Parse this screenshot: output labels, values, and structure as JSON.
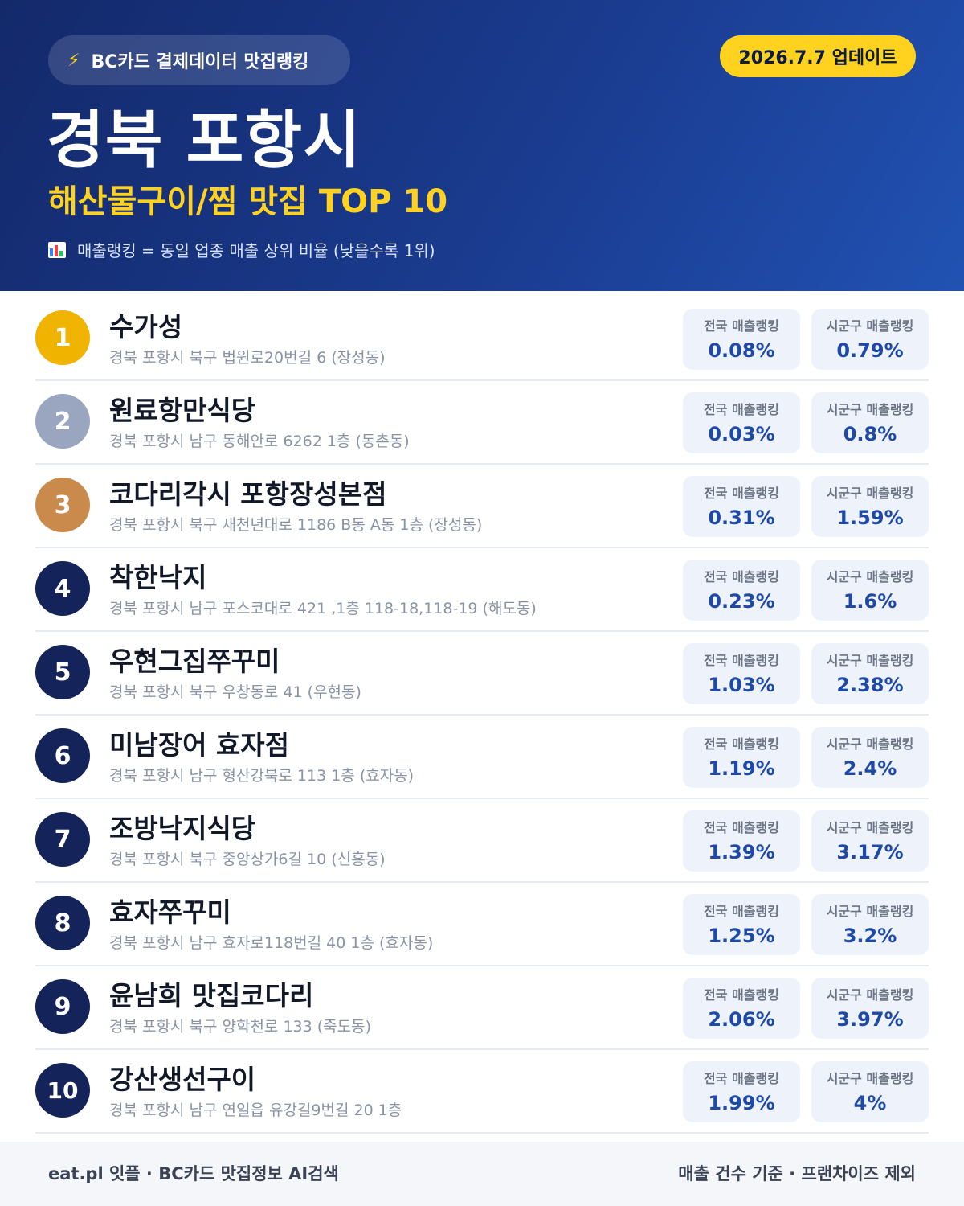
{
  "header": {
    "source_label": "BC카드 결제데이터 맛집랭킹",
    "source_icon": "lightning-bolt-icon",
    "update_label": "2026.7.7 업데이트",
    "city": "경북 포항시",
    "subtitle": "해산물구이/찜 맛집 TOP 10",
    "legend_icon": "bar-chart-icon",
    "legend": "매출랭킹 = 동일 업종 매출 상위 비율 (낮을수록 1위)"
  },
  "metric_labels": {
    "national": "전국 매출랭킹",
    "local": "시군구 매출랭킹"
  },
  "restaurants": [
    {
      "rank": "1",
      "name": "수가성",
      "address": "경북 포항시 북구 법원로20번길 6 (장성동)",
      "national": "0.08%",
      "local": "0.79%"
    },
    {
      "rank": "2",
      "name": "원료항만식당",
      "address": "경북 포항시 남구 동해안로 6262 1층 (동촌동)",
      "national": "0.03%",
      "local": "0.8%"
    },
    {
      "rank": "3",
      "name": "코다리각시 포항장성본점",
      "address": "경북 포항시 북구 새천년대로 1186 B동 A동 1층 (장성동)",
      "national": "0.31%",
      "local": "1.59%"
    },
    {
      "rank": "4",
      "name": "착한낙지",
      "address": "경북 포항시 남구 포스코대로 421 ,1층 118-18,118-19 (해도동)",
      "national": "0.23%",
      "local": "1.6%"
    },
    {
      "rank": "5",
      "name": "우현그집쭈꾸미",
      "address": "경북 포항시 북구 우창동로 41 (우현동)",
      "national": "1.03%",
      "local": "2.38%"
    },
    {
      "rank": "6",
      "name": "미남장어 효자점",
      "address": "경북 포항시 남구 형산강북로 113 1층 (효자동)",
      "national": "1.19%",
      "local": "2.4%"
    },
    {
      "rank": "7",
      "name": "조방낙지식당",
      "address": "경북 포항시 북구 중앙상가6길 10 (신흥동)",
      "national": "1.39%",
      "local": "3.17%"
    },
    {
      "rank": "8",
      "name": "효자쭈꾸미",
      "address": "경북 포항시 남구 효자로118번길 40 1층 (효자동)",
      "national": "1.25%",
      "local": "3.2%"
    },
    {
      "rank": "9",
      "name": "윤남희 맛집코다리",
      "address": "경북 포항시 북구 양학천로 133 (죽도동)",
      "national": "2.06%",
      "local": "3.97%"
    },
    {
      "rank": "10",
      "name": "강산생선구이",
      "address": "경북 포항시 남구 연일읍 유강길9번길 20 1층",
      "national": "1.99%",
      "local": "4%"
    }
  ],
  "footer": {
    "left": "eat.pl 잇플 · BC카드 맛집정보 AI검색",
    "right": "매출 건수 기준 · 프랜차이즈 제외"
  },
  "colors": {
    "header_bg": "#1a3b8f",
    "accent_yellow": "#ffd21f",
    "gold": "#f0b400",
    "silver": "#9aa6bf",
    "bronze": "#c98a4c",
    "navy": "#14245a",
    "metric_value": "#1e49a6"
  }
}
